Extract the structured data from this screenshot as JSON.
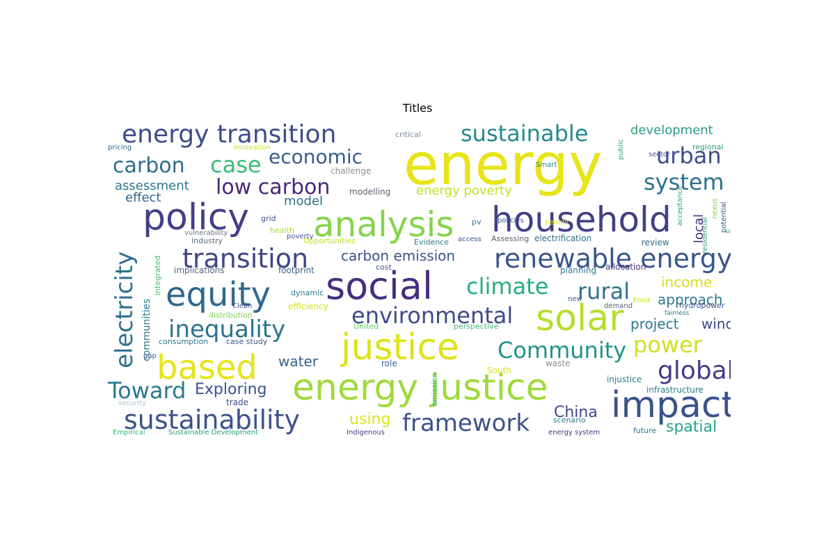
{
  "title": "Titles",
  "words": [
    {
      "text": "energy",
      "color": "#e7e419"
    },
    {
      "text": "energy transition",
      "color": "#3e4c8a"
    },
    {
      "text": "sustainable",
      "color": "#238a8d"
    },
    {
      "text": "development",
      "color": "#2a9d7f"
    },
    {
      "text": "critical",
      "color": "#7e8c9a"
    },
    {
      "text": "carbon",
      "color": "#2f6c8e"
    },
    {
      "text": "case",
      "color": "#3bbb75"
    },
    {
      "text": "economic",
      "color": "#375a8c"
    },
    {
      "text": "urban",
      "color": "#3e4c8a"
    },
    {
      "text": "system",
      "color": "#2c728e"
    },
    {
      "text": "assessment",
      "color": "#2a788e"
    },
    {
      "text": "low carbon",
      "color": "#482878"
    },
    {
      "text": "energy poverty",
      "color": "#c2df23"
    },
    {
      "text": "effect",
      "color": "#33638d"
    },
    {
      "text": "model",
      "color": "#2c718e"
    },
    {
      "text": "modelling",
      "color": "#56606e"
    },
    {
      "text": "challenge",
      "color": "#8a8f95"
    },
    {
      "text": "policy",
      "color": "#433e85"
    },
    {
      "text": "analysis",
      "color": "#84d44b"
    },
    {
      "text": "household",
      "color": "#423f85"
    },
    {
      "text": "electricity",
      "color": "#2d708e"
    },
    {
      "text": "transition",
      "color": "#414487"
    },
    {
      "text": "carbon emission",
      "color": "#3b528b"
    },
    {
      "text": "renewable energy",
      "color": "#39568c"
    },
    {
      "text": "equity",
      "color": "#31688e"
    },
    {
      "text": "social",
      "color": "#472f7d"
    },
    {
      "text": "climate",
      "color": "#27ad81"
    },
    {
      "text": "rural",
      "color": "#2d718e"
    },
    {
      "text": "income",
      "color": "#d0e11c"
    },
    {
      "text": "approach",
      "color": "#2a788e"
    },
    {
      "text": "environmental",
      "color": "#3e4a89"
    },
    {
      "text": "solar",
      "color": "#b5de2b"
    },
    {
      "text": "inequality",
      "color": "#2c738e"
    },
    {
      "text": "project",
      "color": "#2a788e"
    },
    {
      "text": "wind",
      "color": "#3f4788"
    },
    {
      "text": "justice",
      "color": "#dde318"
    },
    {
      "text": "Community",
      "color": "#21918c"
    },
    {
      "text": "power",
      "color": "#cde11d"
    },
    {
      "text": "global",
      "color": "#433d84"
    },
    {
      "text": "based",
      "color": "#e5e419"
    },
    {
      "text": "water",
      "color": "#35608d"
    },
    {
      "text": "energy justice",
      "color": "#9fda3a"
    },
    {
      "text": "Toward",
      "color": "#2a788e"
    },
    {
      "text": "Exploring",
      "color": "#3b528b"
    },
    {
      "text": "impact",
      "color": "#3b528b"
    },
    {
      "text": "China",
      "color": "#3f4788"
    },
    {
      "text": "sustainability",
      "color": "#3b528b"
    },
    {
      "text": "using",
      "color": "#dfe318"
    },
    {
      "text": "framework",
      "color": "#3b528b"
    },
    {
      "text": "spatial",
      "color": "#22a884"
    },
    {
      "text": "communities",
      "color": "#2a788e"
    },
    {
      "text": "local",
      "color": "#472d7b"
    },
    {
      "text": "integrated",
      "color": "#3dbc74"
    },
    {
      "text": "implications",
      "color": "#4e5f7e"
    },
    {
      "text": "footprint",
      "color": "#33638d"
    },
    {
      "text": "planning",
      "color": "#2a788e"
    },
    {
      "text": "allocation",
      "color": "#46337e"
    },
    {
      "text": "industry",
      "color": "#5d6a79"
    },
    {
      "text": "vulnerability",
      "color": "#6a7683"
    },
    {
      "text": "health",
      "color": "#a8db34"
    },
    {
      "text": "poverty",
      "color": "#3b528b"
    },
    {
      "text": "Opportunities",
      "color": "#c0df25"
    },
    {
      "text": "Evidence",
      "color": "#2a7b8e"
    },
    {
      "text": "access",
      "color": "#3b528b"
    },
    {
      "text": "Assessing",
      "color": "#56606e"
    },
    {
      "text": "electrification",
      "color": "#2f6c8e"
    },
    {
      "text": "review",
      "color": "#31688e"
    },
    {
      "text": "efficiency",
      "color": "#d4e21a"
    },
    {
      "text": "distribution",
      "color": "#7ad151"
    },
    {
      "text": "consumption",
      "color": "#2c728e"
    },
    {
      "text": "case study",
      "color": "#3b528b"
    },
    {
      "text": "United",
      "color": "#5ec962"
    },
    {
      "text": "perspective",
      "color": "#3fbc73"
    },
    {
      "text": "dynamic",
      "color": "#2a788e"
    },
    {
      "text": "Clean",
      "color": "#3b528b"
    },
    {
      "text": "trade",
      "color": "#3e4a89"
    },
    {
      "text": "role",
      "color": "#35608d"
    },
    {
      "text": "emission",
      "color": "#3dbc74"
    },
    {
      "text": "South",
      "color": "#e0e318"
    },
    {
      "text": "waste",
      "color": "#8a8f95"
    },
    {
      "text": "infrastructure",
      "color": "#2a788e"
    },
    {
      "text": "injustice",
      "color": "#2a788e"
    },
    {
      "text": "scenario",
      "color": "#2a788e"
    },
    {
      "text": "future",
      "color": "#2a788e"
    },
    {
      "text": "energy system",
      "color": "#46337e"
    },
    {
      "text": "security",
      "color": "#a6c0cf"
    },
    {
      "text": "Empirical",
      "color": "#39b77a"
    },
    {
      "text": "Sustainable Development",
      "color": "#2a9d7f"
    },
    {
      "text": "Indigenous",
      "color": "#433e85"
    },
    {
      "text": "pricing",
      "color": "#31688e"
    },
    {
      "text": "innovation",
      "color": "#c2df23"
    },
    {
      "text": "public",
      "color": "#2a9d7f"
    },
    {
      "text": "sector",
      "color": "#3b528b"
    },
    {
      "text": "regional",
      "color": "#2a9d7f"
    },
    {
      "text": "Food",
      "color": "#bddf26"
    },
    {
      "text": "Smart",
      "color": "#2a788e"
    },
    {
      "text": "benefit",
      "color": "#e5e419"
    },
    {
      "text": "policies",
      "color": "#3b528b"
    },
    {
      "text": "cost",
      "color": "#3b528b"
    },
    {
      "text": "acceptance",
      "color": "#2a9d7f"
    },
    {
      "text": "residential",
      "color": "#2a9d7f"
    },
    {
      "text": "potential",
      "color": "#3b528b"
    },
    {
      "text": "nexus",
      "color": "#7ad151"
    },
    {
      "text": "use",
      "color": "#2a9d7f"
    },
    {
      "text": "grid",
      "color": "#3b528b"
    },
    {
      "text": "pv",
      "color": "#2a788e"
    },
    {
      "text": "gap",
      "color": "#3b528b"
    },
    {
      "text": "hydropower",
      "color": "#3b528b"
    },
    {
      "text": "fairness",
      "color": "#2a788e"
    },
    {
      "text": "demand",
      "color": "#56606e"
    },
    {
      "text": "new",
      "color": "#3b528b"
    }
  ]
}
